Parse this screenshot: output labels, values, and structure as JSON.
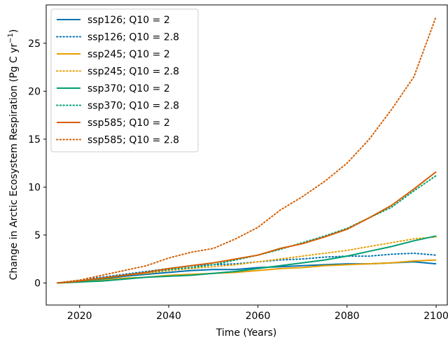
{
  "chart_data": {
    "type": "line",
    "xlabel": "Time (Years)",
    "ylabel_main": "Change in Arctic Ecosystem Respiration (Pg C yr",
    "ylabel_sup": "−1",
    "ylabel_close": ")",
    "xlim": [
      2012.5,
      2102.5
    ],
    "ylim": [
      -2.3,
      29.0
    ],
    "xticks": [
      2020,
      2040,
      2060,
      2080,
      2100
    ],
    "yticks": [
      0,
      5,
      10,
      15,
      20,
      25
    ],
    "grid": false,
    "legend_position": "top-left",
    "colors": {
      "ssp126": "#0072B2",
      "ssp245": "#E69F00",
      "ssp370": "#009E73",
      "ssp585": "#D55E00"
    },
    "series": [
      {
        "name": "ssp126; Q10 = 2",
        "color": "#0072B2",
        "style": "solid",
        "x": [
          2015,
          2020,
          2025,
          2030,
          2035,
          2040,
          2045,
          2050,
          2055,
          2060,
          2065,
          2070,
          2075,
          2080,
          2085,
          2090,
          2095,
          2100
        ],
        "y": [
          0.0,
          0.2,
          0.4,
          0.7,
          0.9,
          1.1,
          1.3,
          1.4,
          1.4,
          1.6,
          1.7,
          1.8,
          1.9,
          2.0,
          2.0,
          2.1,
          2.2,
          2.0
        ]
      },
      {
        "name": "ssp126; Q10 = 2.8",
        "color": "#0072B2",
        "style": "dotted",
        "x": [
          2015,
          2020,
          2025,
          2030,
          2035,
          2040,
          2045,
          2050,
          2055,
          2060,
          2065,
          2070,
          2075,
          2080,
          2085,
          2090,
          2095,
          2100
        ],
        "y": [
          0.0,
          0.3,
          0.6,
          0.9,
          1.2,
          1.5,
          1.8,
          1.9,
          2.0,
          2.2,
          2.4,
          2.5,
          2.7,
          2.8,
          2.8,
          3.0,
          3.1,
          2.9
        ]
      },
      {
        "name": "ssp245; Q10 = 2",
        "color": "#E69F00",
        "style": "solid",
        "x": [
          2015,
          2020,
          2025,
          2030,
          2035,
          2040,
          2045,
          2050,
          2055,
          2060,
          2065,
          2070,
          2075,
          2080,
          2085,
          2090,
          2095,
          2100
        ],
        "y": [
          0.0,
          0.1,
          0.3,
          0.5,
          0.6,
          0.8,
          0.9,
          1.0,
          1.1,
          1.3,
          1.5,
          1.6,
          1.8,
          1.9,
          2.0,
          2.1,
          2.3,
          2.4
        ]
      },
      {
        "name": "ssp245; Q10 = 2.8",
        "color": "#E69F00",
        "style": "dotted",
        "x": [
          2015,
          2020,
          2025,
          2030,
          2035,
          2040,
          2045,
          2050,
          2055,
          2060,
          2065,
          2070,
          2075,
          2080,
          2085,
          2090,
          2095,
          2100
        ],
        "y": [
          0.0,
          0.2,
          0.5,
          0.8,
          1.0,
          1.3,
          1.5,
          1.7,
          1.9,
          2.2,
          2.5,
          2.8,
          3.1,
          3.4,
          3.8,
          4.2,
          4.6,
          4.8
        ]
      },
      {
        "name": "ssp370; Q10 = 2",
        "color": "#009E73",
        "style": "solid",
        "x": [
          2015,
          2020,
          2025,
          2030,
          2035,
          2040,
          2045,
          2050,
          2055,
          2060,
          2065,
          2070,
          2075,
          2080,
          2085,
          2090,
          2095,
          2100
        ],
        "y": [
          0.0,
          0.1,
          0.2,
          0.4,
          0.6,
          0.7,
          0.8,
          1.0,
          1.2,
          1.5,
          1.8,
          2.1,
          2.4,
          2.8,
          3.3,
          3.8,
          4.4,
          4.9
        ]
      },
      {
        "name": "ssp370; Q10 = 2.8",
        "color": "#009E73",
        "style": "dotted",
        "x": [
          2015,
          2020,
          2025,
          2030,
          2035,
          2040,
          2045,
          2050,
          2055,
          2060,
          2065,
          2070,
          2075,
          2080,
          2085,
          2090,
          2095,
          2100
        ],
        "y": [
          0.0,
          0.2,
          0.4,
          0.8,
          1.1,
          1.4,
          1.6,
          1.9,
          2.4,
          2.9,
          3.5,
          4.2,
          4.9,
          5.7,
          6.8,
          7.9,
          9.6,
          11.2
        ]
      },
      {
        "name": "ssp585; Q10 = 2",
        "color": "#D55E00",
        "style": "solid",
        "x": [
          2015,
          2020,
          2025,
          2030,
          2035,
          2040,
          2045,
          2050,
          2055,
          2060,
          2065,
          2070,
          2075,
          2080,
          2085,
          2090,
          2095,
          2100
        ],
        "y": [
          0.0,
          0.2,
          0.5,
          0.8,
          1.1,
          1.5,
          1.8,
          2.1,
          2.5,
          2.9,
          3.6,
          4.1,
          4.8,
          5.6,
          6.8,
          8.1,
          9.8,
          11.6
        ]
      },
      {
        "name": "ssp585; Q10 = 2.8",
        "color": "#D55E00",
        "style": "dotted",
        "x": [
          2015,
          2020,
          2025,
          2030,
          2035,
          2040,
          2045,
          2050,
          2055,
          2060,
          2065,
          2070,
          2075,
          2080,
          2085,
          2090,
          2095,
          2100
        ],
        "y": [
          0.0,
          0.3,
          0.8,
          1.3,
          1.8,
          2.6,
          3.2,
          3.6,
          4.6,
          5.8,
          7.6,
          9.0,
          10.6,
          12.5,
          15.0,
          18.1,
          21.5,
          27.8
        ]
      }
    ]
  }
}
